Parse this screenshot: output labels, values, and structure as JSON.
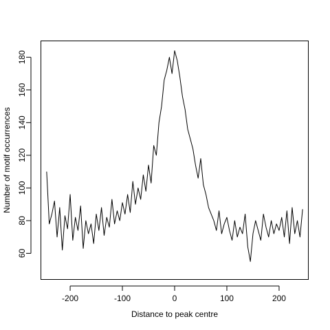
{
  "chart_data": {
    "type": "line",
    "xlabel": "Distance to peak centre",
    "ylabel": "Number of motif occurrences",
    "xlim": [
      -256,
      256
    ],
    "ylim": [
      44,
      190
    ],
    "x_ticks": [
      -200,
      -100,
      0,
      100,
      200
    ],
    "y_ticks": [
      60,
      80,
      100,
      120,
      140,
      160,
      180
    ],
    "x_tick_labels": [
      "-200",
      "-100",
      "0",
      "100",
      "200"
    ],
    "y_tick_labels": [
      "60",
      "80",
      "100",
      "120",
      "140",
      "160",
      "180"
    ],
    "series_color": "#000000",
    "series": [
      {
        "x": [
          -245,
          -240,
          -235,
          -230,
          -225,
          -220,
          -215,
          -210,
          -205,
          -200,
          -195,
          -190,
          -185,
          -180,
          -175,
          -170,
          -165,
          -160,
          -155,
          -150,
          -145,
          -140,
          -135,
          -130,
          -125,
          -120,
          -115,
          -110,
          -105,
          -100,
          -95,
          -90,
          -85,
          -80,
          -75,
          -70,
          -65,
          -60,
          -55,
          -50,
          -45,
          -40,
          -35,
          -30,
          -25,
          -20,
          -15,
          -10,
          -5,
          0,
          5,
          10,
          15,
          20,
          25,
          30,
          35,
          40,
          45,
          50,
          55,
          60,
          65,
          70,
          75,
          80,
          85,
          90,
          95,
          100,
          105,
          110,
          115,
          120,
          125,
          130,
          135,
          140,
          145,
          150,
          155,
          160,
          165,
          170,
          175,
          180,
          185,
          190,
          195,
          200,
          205,
          210,
          215,
          220,
          225,
          230,
          235,
          240,
          245
        ],
        "values": [
          110,
          78,
          84,
          92,
          70,
          88,
          62,
          83,
          75,
          96,
          68,
          82,
          74,
          89,
          63,
          80,
          72,
          78,
          66,
          84,
          74,
          88,
          71,
          82,
          76,
          93,
          78,
          86,
          80,
          91,
          84,
          96,
          85,
          104,
          90,
          100,
          93,
          108,
          98,
          114,
          103,
          126,
          120,
          140,
          150,
          166,
          172,
          180,
          170,
          184,
          178,
          168,
          156,
          148,
          136,
          130,
          124,
          114,
          106,
          118,
          102,
          96,
          88,
          84,
          80,
          74,
          86,
          72,
          78,
          82,
          74,
          68,
          80,
          70,
          76,
          72,
          84,
          64,
          55,
          72,
          80,
          74,
          68,
          84,
          76,
          70,
          80,
          72,
          78,
          74,
          82,
          70,
          86,
          66,
          88,
          72,
          80,
          70,
          87
        ]
      }
    ]
  }
}
